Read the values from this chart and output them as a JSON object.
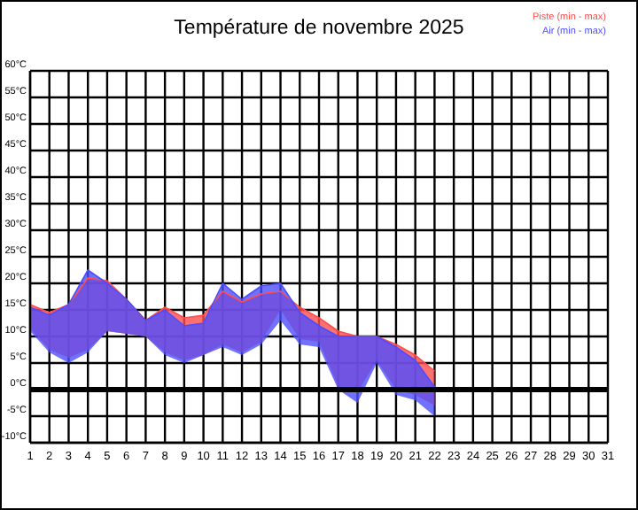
{
  "chart_data": {
    "type": "line",
    "title": "Température de novembre 2025",
    "x": [
      1,
      2,
      3,
      4,
      5,
      6,
      7,
      8,
      9,
      10,
      11,
      12,
      13,
      14,
      15,
      16,
      17,
      18,
      19,
      20,
      21,
      22
    ],
    "series": [
      {
        "name": "Piste (min - max)",
        "color": "#ff4d4d",
        "values": [
          16,
          14.5,
          16,
          21,
          20.5,
          17,
          13,
          15.5,
          13.5,
          14,
          18.5,
          16.5,
          18,
          18.5,
          15.5,
          13.5,
          11,
          10,
          10,
          8.5,
          6.5,
          3.5
        ],
        "lower": [
          11.5,
          7.5,
          6,
          7.5,
          11,
          10.5,
          10,
          7,
          5.5,
          6.5,
          8.5,
          7,
          9,
          15,
          9.5,
          9,
          0.5,
          -0.5,
          5.5,
          0,
          -1,
          -3
        ],
        "upper": [
          16,
          14.5,
          16,
          21,
          20.5,
          17,
          13,
          15.5,
          13.5,
          14,
          18.5,
          16.5,
          18,
          18.5,
          15.5,
          13.5,
          11,
          10,
          10,
          8.5,
          6.5,
          3.5
        ]
      },
      {
        "name": "Air (min - max)",
        "color": "#4d4dff",
        "values": [
          15.5,
          14,
          16,
          22.5,
          20,
          17,
          13,
          15,
          12,
          12.5,
          20,
          17,
          19.5,
          20,
          14.5,
          12,
          10,
          10,
          10,
          8,
          5.5,
          0.5
        ],
        "lower": [
          11,
          7,
          5,
          7,
          11,
          10.5,
          10,
          6.5,
          5,
          6.5,
          8,
          6.5,
          8.5,
          13,
          8.5,
          8,
          0,
          -2.5,
          5,
          -1,
          -2,
          -5
        ],
        "upper": [
          15.5,
          14,
          16,
          22.5,
          20,
          17,
          13,
          15,
          12,
          12.5,
          20,
          17,
          19.5,
          20,
          14.5,
          12,
          10,
          10,
          10,
          8,
          5.5,
          0.5
        ]
      }
    ],
    "xlim": [
      1,
      31
    ],
    "xticks": [
      1,
      2,
      3,
      4,
      5,
      6,
      7,
      8,
      9,
      10,
      11,
      12,
      13,
      14,
      15,
      16,
      17,
      18,
      19,
      20,
      21,
      22,
      23,
      24,
      25,
      26,
      27,
      28,
      29,
      30,
      31
    ],
    "ylim": [
      -10,
      60
    ],
    "yticks": [
      {
        "value": -10,
        "label": "-10°C"
      },
      {
        "value": -5,
        "label": "-5°C"
      },
      {
        "value": 0,
        "label": "0°C"
      },
      {
        "value": 5,
        "label": "5°C"
      },
      {
        "value": 10,
        "label": "10°C"
      },
      {
        "value": 15,
        "label": "15°C"
      },
      {
        "value": 20,
        "label": "20°C"
      },
      {
        "value": 25,
        "label": "25°C"
      },
      {
        "value": 30,
        "label": "30°C"
      },
      {
        "value": 35,
        "label": "35°C"
      },
      {
        "value": 40,
        "label": "40°C"
      },
      {
        "value": 45,
        "label": "45°C"
      },
      {
        "value": 50,
        "label": "50°C"
      },
      {
        "value": 55,
        "label": "55°C"
      },
      {
        "value": 60,
        "label": "60°C"
      }
    ],
    "ref_lines": [
      {
        "axis": "y",
        "value": 0,
        "color": "#000000"
      }
    ],
    "grid": true,
    "legend": "top right"
  }
}
